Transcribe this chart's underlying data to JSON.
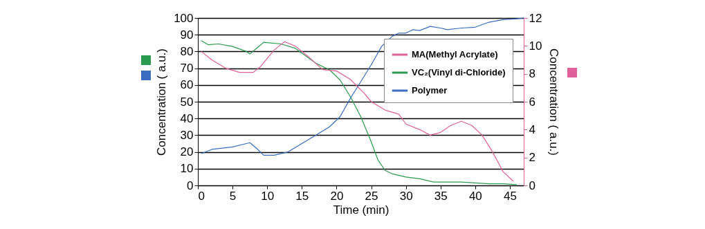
{
  "chart_data": {
    "type": "line",
    "xlabel": "Time (min)",
    "ylabel": "Concentration ( a.u.)",
    "y2label": "Concentration ( a.u.)",
    "xlim": [
      0,
      47
    ],
    "xticks": [
      0,
      5,
      10,
      15,
      20,
      25,
      30,
      35,
      40,
      45
    ],
    "ylim": [
      0,
      100
    ],
    "yticks": [
      0,
      10,
      20,
      30,
      40,
      50,
      60,
      70,
      80,
      90,
      100
    ],
    "y2lim": [
      0,
      12
    ],
    "y2ticks": [
      0,
      2,
      4,
      6,
      8,
      10,
      12
    ],
    "grid": "y",
    "legend": "top right",
    "marker": "none",
    "line_style": "solid",
    "series": [
      {
        "name": "MA(Methyl Acrylate)",
        "color": "#e0609a",
        "axis": "y2",
        "x": [
          0.5,
          2,
          4,
          6,
          8,
          9,
          11,
          12.5,
          14,
          16,
          18,
          20,
          22,
          24,
          25,
          27,
          29,
          30,
          32,
          33.5,
          35,
          36.5,
          38,
          39.5,
          41,
          42.5,
          44,
          45.5
        ],
        "values": [
          9.6,
          9,
          8.4,
          8.1,
          8.1,
          8.5,
          9.7,
          10.3,
          10,
          9.2,
          8.3,
          8.2,
          7.6,
          6.6,
          6,
          5.4,
          5.1,
          4.4,
          4,
          3.6,
          3.8,
          4.3,
          4.6,
          4.3,
          3.6,
          2.4,
          1,
          0.3
        ]
      },
      {
        "name": "VC₂(Vinyl di-Chloride)",
        "color": "#2a9a50",
        "axis": "y",
        "x": [
          0.5,
          1.5,
          3,
          5,
          7,
          7.5,
          8.5,
          9.5,
          12,
          14,
          15,
          17,
          19,
          20.5,
          22,
          23.5,
          25,
          26,
          27,
          28,
          30,
          32,
          34,
          36,
          38,
          40,
          42,
          44,
          46
        ],
        "values": [
          86.5,
          84,
          84.5,
          83,
          80,
          78.5,
          82,
          85.5,
          84.5,
          82,
          79,
          73,
          69,
          63,
          53,
          41,
          26,
          15,
          9,
          7,
          5,
          4,
          2,
          2,
          2,
          1.5,
          1,
          1,
          0.5
        ]
      },
      {
        "name": "Polymer",
        "color": "#3a6cc0",
        "axis": "y",
        "x": [
          0.5,
          2,
          5,
          7.5,
          8.5,
          9.5,
          11,
          13,
          15,
          17,
          19,
          20.5,
          22,
          23.5,
          25,
          26.5,
          28,
          29,
          30,
          31,
          32,
          33.5,
          35,
          36,
          38,
          40,
          42,
          44,
          46,
          47
        ],
        "values": [
          19,
          21.5,
          23,
          25.5,
          22,
          18,
          18,
          20,
          25,
          30,
          35,
          41,
          52,
          62,
          72,
          83,
          89,
          91,
          91,
          93,
          92.5,
          95,
          94,
          93,
          94,
          94.5,
          97.5,
          99,
          99.5,
          100
        ]
      }
    ]
  }
}
